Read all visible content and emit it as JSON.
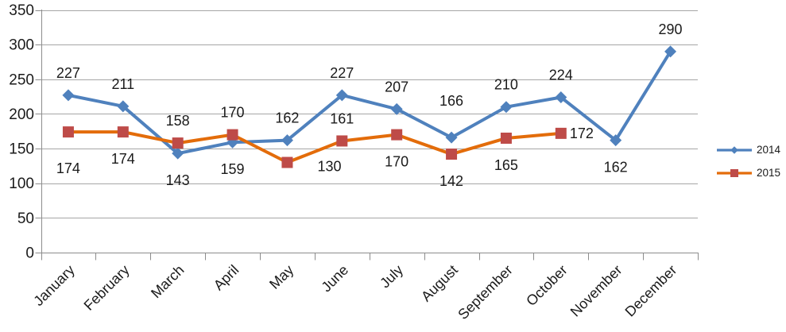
{
  "chart_data": {
    "type": "line",
    "title": "",
    "xlabel": "",
    "ylabel": "",
    "categories": [
      "January",
      "February",
      "March",
      "April",
      "May",
      "June",
      "July",
      "August",
      "September",
      "October",
      "November",
      "December"
    ],
    "series": [
      {
        "name": "2014",
        "marker": "diamond",
        "line_color": "#4F81BD",
        "marker_color": "#4F81BD",
        "values": [
          227,
          211,
          143,
          159,
          162,
          227,
          207,
          166,
          210,
          224,
          162,
          290
        ],
        "label_positions": [
          "above",
          "above",
          "below",
          "below",
          "above",
          "above",
          "above",
          "above-far",
          "above",
          "above",
          "below",
          "above"
        ]
      },
      {
        "name": "2015",
        "marker": "square",
        "line_color": "#E36C0A",
        "marker_color": "#BE4B48",
        "values": [
          174,
          174,
          158,
          170,
          130,
          161,
          170,
          142,
          165,
          172
        ],
        "label_positions": [
          "below-far",
          "below",
          "above",
          "above",
          "below-right",
          "above",
          "below",
          "below",
          "below",
          "right"
        ]
      }
    ],
    "ylim": [
      0,
      350
    ],
    "ytick_step": 50,
    "yticks": [
      0,
      50,
      100,
      150,
      200,
      250,
      300,
      350
    ],
    "grid": true,
    "legend_position": "right",
    "colors": {
      "grid_line": "#A6A6A6",
      "axis_line": "#8C8C8C",
      "text": "#1A1A1A"
    }
  }
}
